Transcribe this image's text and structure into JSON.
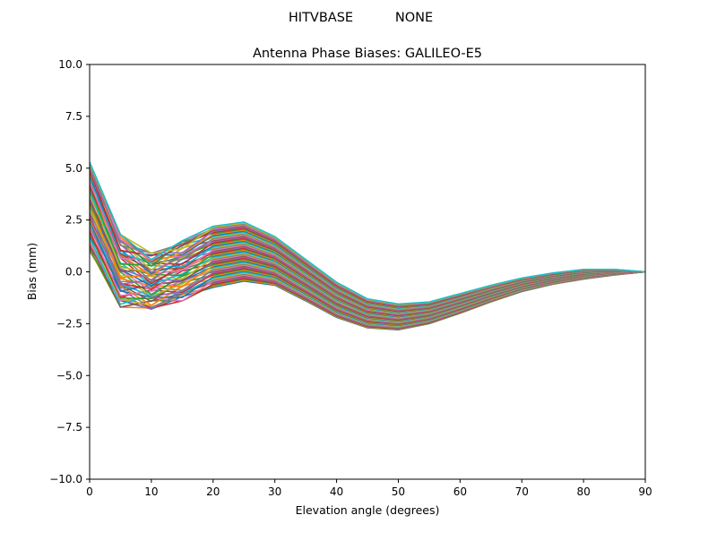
{
  "figure": {
    "suptitle_left": "HITVBASE",
    "suptitle_right": "NONE"
  },
  "chart_data": {
    "type": "line",
    "title": "Antenna Phase Biases: GALILEO-E5",
    "xlabel": "Elevation angle (degrees)",
    "ylabel": "Bias (mm)",
    "xlim": [
      0,
      90
    ],
    "ylim": [
      -10,
      10
    ],
    "xticks": [
      0,
      10,
      20,
      30,
      40,
      50,
      60,
      70,
      80,
      90
    ],
    "xtick_labels": [
      "0",
      "10",
      "20",
      "30",
      "40",
      "50",
      "60",
      "70",
      "80",
      "90"
    ],
    "yticks": [
      -10,
      -7.5,
      -5,
      -2.5,
      0,
      2.5,
      5,
      7.5,
      10
    ],
    "ytick_labels": [
      "−10.0",
      "−7.5",
      "−5.0",
      "−2.5",
      "0.0",
      "2.5",
      "5.0",
      "7.5",
      "10.0"
    ],
    "grid": false,
    "x": [
      0,
      5,
      10,
      15,
      20,
      25,
      30,
      35,
      40,
      45,
      50,
      55,
      60,
      65,
      70,
      75,
      80,
      85,
      90
    ],
    "envelope_upper": [
      5.3,
      1.8,
      0.9,
      1.5,
      2.2,
      2.4,
      1.7,
      0.6,
      -0.5,
      -1.3,
      -1.55,
      -1.45,
      -1.05,
      -0.65,
      -0.3,
      -0.05,
      0.12,
      0.12,
      0.0
    ],
    "envelope_lower": [
      1.0,
      -1.7,
      -1.8,
      -1.4,
      -0.75,
      -0.45,
      -0.65,
      -1.4,
      -2.2,
      -2.7,
      -2.8,
      -2.5,
      -2.0,
      -1.45,
      -0.95,
      -0.6,
      -0.35,
      -0.15,
      0.0
    ],
    "series_count": 60,
    "colors": [
      "#1f77b4",
      "#ff7f0e",
      "#2ca02c",
      "#d62728",
      "#9467bd",
      "#8c564b",
      "#e377c2",
      "#7f7f7f",
      "#bcbd22",
      "#17becf"
    ]
  }
}
